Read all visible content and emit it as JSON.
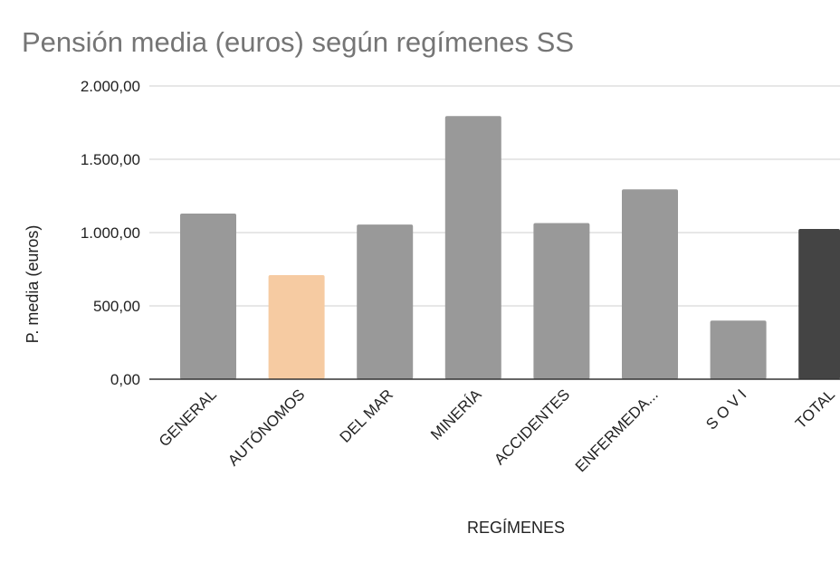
{
  "chart_data": {
    "type": "bar",
    "title": "Pensión media (euros) según regímenes SS",
    "xlabel": "REGÍMENES",
    "ylabel": "P. media (euros)",
    "ylim": [
      0,
      2000
    ],
    "yticks": [
      0,
      500,
      1000,
      1500,
      2000
    ],
    "ytick_labels": [
      "0,00",
      "500,00",
      "1.000,00",
      "1.500,00",
      "2.000,00"
    ],
    "grid": true,
    "legend": "none",
    "categories": [
      "GENERAL",
      "AUTÓNOMOS",
      "DEL MAR",
      "MINERÍA",
      "ACCIDENTES",
      "ENFERMEDA...",
      "S O V I",
      "TOTAL"
    ],
    "values": [
      1130,
      710,
      1055,
      1795,
      1065,
      1295,
      400,
      1025
    ],
    "colors": [
      "#999999",
      "#f6cba2",
      "#999999",
      "#999999",
      "#999999",
      "#999999",
      "#999999",
      "#444444"
    ]
  }
}
